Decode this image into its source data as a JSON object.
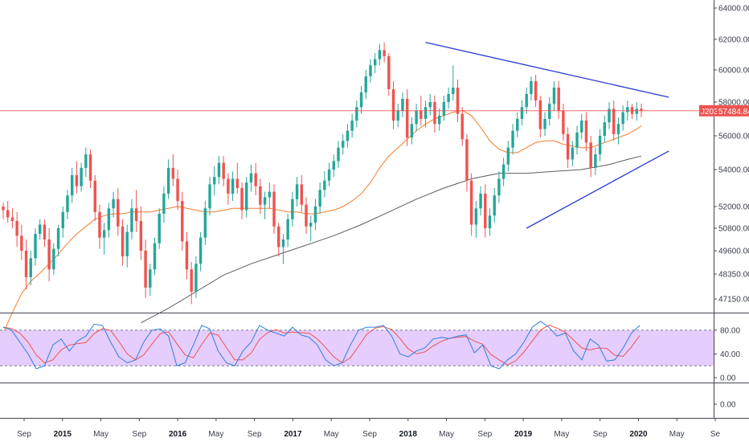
{
  "chart_data": {
    "type": "candlestick",
    "colors": {
      "up": "#26a69a",
      "down": "#ef5350",
      "ma_short": "#f57c2c",
      "ma_long": "#5d5d5d",
      "trendline": "#2a3bd1",
      "price_line": "#ef5350",
      "stoch_band": "#e5cdfd",
      "stoch_k": "#2d7fe0",
      "stoch_d": "#ef5350"
    },
    "y_axis_ticks": [
      "64000.00",
      "62000.00",
      "60000.00",
      "58000.00",
      "56000.00",
      "54000.00",
      "52000.00",
      "50800.00",
      "49600.00",
      "48350.00",
      "47150.00"
    ],
    "y_axis_values": [
      64000,
      62000,
      60000,
      58000,
      56000,
      54000,
      52000,
      50800,
      49600,
      48350,
      47150
    ],
    "x_axis_labels": [
      {
        "label": "Sep",
        "bold": false
      },
      {
        "label": "2015",
        "bold": true
      },
      {
        "label": "May",
        "bold": false
      },
      {
        "label": "Sep",
        "bold": false
      },
      {
        "label": "2016",
        "bold": true
      },
      {
        "label": "May",
        "bold": false
      },
      {
        "label": "Sep",
        "bold": false
      },
      {
        "label": "2017",
        "bold": true
      },
      {
        "label": "May",
        "bold": false
      },
      {
        "label": "Sep",
        "bold": false
      },
      {
        "label": "2018",
        "bold": true
      },
      {
        "label": "May",
        "bold": false
      },
      {
        "label": "Sep",
        "bold": false
      },
      {
        "label": "2019",
        "bold": true
      },
      {
        "label": "May",
        "bold": false
      },
      {
        "label": "Sep",
        "bold": false
      },
      {
        "label": "2020",
        "bold": true
      },
      {
        "label": "May",
        "bold": false
      },
      {
        "label": "Se",
        "bold": false
      }
    ],
    "price_tag": {
      "symbol": "J203",
      "value": "57484.84",
      "price": 57484.84
    },
    "stochastic": {
      "ticks": [
        "80.00",
        "40.00",
        "0.00"
      ],
      "values": [
        80,
        40,
        0
      ],
      "band": [
        80,
        20
      ],
      "k": [
        85,
        80,
        60,
        40,
        15,
        20,
        55,
        65,
        45,
        62,
        70,
        90,
        88,
        60,
        35,
        25,
        30,
        60,
        80,
        82,
        70,
        20,
        25,
        55,
        88,
        82,
        45,
        25,
        20,
        45,
        60,
        88,
        80,
        75,
        70,
        85,
        72,
        68,
        55,
        30,
        20,
        25,
        55,
        80,
        85,
        85,
        88,
        70,
        40,
        35,
        45,
        50,
        65,
        68,
        66,
        70,
        72,
        42,
        55,
        20,
        15,
        30,
        40,
        60,
        85,
        95,
        85,
        70,
        75,
        45,
        30,
        65,
        55,
        28,
        30,
        50,
        75,
        88
      ]
    },
    "candles": [
      [
        52000,
        52200,
        51300,
        51800
      ],
      [
        51800,
        52300,
        51100,
        51400
      ],
      [
        51400,
        51900,
        50800,
        51200
      ],
      [
        51200,
        51700,
        49800,
        50400
      ],
      [
        50400,
        51000,
        49100,
        49600
      ],
      [
        49600,
        50200,
        47600,
        48200
      ],
      [
        48200,
        49600,
        47800,
        49200
      ],
      [
        49200,
        50800,
        48800,
        50500
      ],
      [
        50500,
        51300,
        50200,
        51000
      ],
      [
        51000,
        51300,
        49800,
        50200
      ],
      [
        50200,
        50800,
        48000,
        48600
      ],
      [
        48600,
        50000,
        48300,
        49700
      ],
      [
        49700,
        51000,
        49300,
        50800
      ],
      [
        50800,
        52000,
        50300,
        51700
      ],
      [
        51700,
        52900,
        51300,
        52600
      ],
      [
        52600,
        54100,
        52200,
        53700
      ],
      [
        53700,
        54500,
        52700,
        53100
      ],
      [
        53100,
        54400,
        52800,
        54100
      ],
      [
        54100,
        55300,
        53600,
        54900
      ],
      [
        54900,
        55200,
        53000,
        53400
      ],
      [
        53400,
        53700,
        51200,
        51700
      ],
      [
        51700,
        52100,
        49700,
        50300
      ],
      [
        50300,
        51100,
        49400,
        50700
      ],
      [
        50700,
        52200,
        50300,
        51900
      ],
      [
        51900,
        52800,
        51400,
        52400
      ],
      [
        52400,
        53000,
        50400,
        50900
      ],
      [
        50900,
        51300,
        48800,
        49300
      ],
      [
        49300,
        51000,
        48700,
        50600
      ],
      [
        50600,
        52400,
        50200,
        51900
      ],
      [
        51900,
        52900,
        50600,
        51200
      ],
      [
        51200,
        52000,
        49100,
        49600
      ],
      [
        49600,
        50200,
        47200,
        47700
      ],
      [
        47700,
        48900,
        47300,
        48600
      ],
      [
        48600,
        50300,
        48300,
        50000
      ],
      [
        50000,
        51900,
        49700,
        51600
      ],
      [
        51600,
        53100,
        51100,
        52700
      ],
      [
        52700,
        54600,
        52400,
        54100
      ],
      [
        54100,
        54900,
        53100,
        53500
      ],
      [
        53500,
        54000,
        51800,
        52300
      ],
      [
        52300,
        52800,
        49600,
        50100
      ],
      [
        50100,
        50600,
        48100,
        48600
      ],
      [
        48600,
        49000,
        46900,
        47500
      ],
      [
        47500,
        49300,
        47200,
        48900
      ],
      [
        48900,
        50600,
        48500,
        50300
      ],
      [
        50300,
        52300,
        49900,
        51900
      ],
      [
        51900,
        53600,
        51500,
        53200
      ],
      [
        53200,
        54200,
        52600,
        53600
      ],
      [
        53600,
        54800,
        53200,
        54400
      ],
      [
        54400,
        54800,
        53100,
        53500
      ],
      [
        53500,
        53800,
        52100,
        52700
      ],
      [
        52700,
        53900,
        52300,
        53500
      ],
      [
        53500,
        54400,
        52700,
        53000
      ],
      [
        53000,
        53300,
        51300,
        51800
      ],
      [
        51800,
        53600,
        51400,
        53300
      ],
      [
        53300,
        54300,
        52800,
        53800
      ],
      [
        53800,
        54400,
        52600,
        53100
      ],
      [
        53100,
        53500,
        51600,
        52100
      ],
      [
        52100,
        52800,
        51300,
        52500
      ],
      [
        52500,
        53300,
        51900,
        52800
      ],
      [
        52800,
        53200,
        50500,
        50900
      ],
      [
        50900,
        51100,
        49300,
        49800
      ],
      [
        49800,
        50500,
        48900,
        50200
      ],
      [
        50200,
        51600,
        49800,
        51300
      ],
      [
        51300,
        52800,
        50900,
        52400
      ],
      [
        52400,
        53600,
        52000,
        53200
      ],
      [
        53200,
        53700,
        51700,
        52100
      ],
      [
        52100,
        52500,
        50500,
        50900
      ],
      [
        50900,
        51500,
        50100,
        51100
      ],
      [
        51100,
        52400,
        50700,
        52000
      ],
      [
        52000,
        53300,
        51600,
        52900
      ],
      [
        52900,
        53900,
        52500,
        53400
      ],
      [
        53400,
        54400,
        53100,
        54000
      ],
      [
        54000,
        54900,
        53600,
        54500
      ],
      [
        54500,
        55700,
        54100,
        55300
      ],
      [
        55300,
        56100,
        54900,
        55700
      ],
      [
        55700,
        56700,
        55300,
        56300
      ],
      [
        56300,
        57300,
        55900,
        56900
      ],
      [
        56900,
        58100,
        56500,
        57700
      ],
      [
        57700,
        59000,
        57300,
        58600
      ],
      [
        58600,
        60000,
        58200,
        59600
      ],
      [
        59600,
        60700,
        59200,
        60300
      ],
      [
        60300,
        61100,
        59800,
        60700
      ],
      [
        60700,
        61700,
        60300,
        61300
      ],
      [
        61300,
        61800,
        60500,
        60900
      ],
      [
        60900,
        61100,
        58400,
        58800
      ],
      [
        58800,
        59300,
        56400,
        56900
      ],
      [
        56900,
        57900,
        56500,
        57500
      ],
      [
        57500,
        58600,
        57100,
        58200
      ],
      [
        58200,
        58800,
        55400,
        55900
      ],
      [
        55900,
        57100,
        55500,
        56700
      ],
      [
        56700,
        57900,
        56300,
        57500
      ],
      [
        57500,
        58400,
        56600,
        57000
      ],
      [
        57000,
        58100,
        56500,
        57700
      ],
      [
        57700,
        58500,
        57200,
        58000
      ],
      [
        58000,
        58400,
        56200,
        56700
      ],
      [
        56700,
        57600,
        56300,
        57200
      ],
      [
        57200,
        58400,
        56900,
        58000
      ],
      [
        58000,
        58900,
        57600,
        58500
      ],
      [
        58500,
        60300,
        58100,
        58900
      ],
      [
        58900,
        59400,
        56800,
        57300
      ],
      [
        57300,
        57700,
        55400,
        55800
      ],
      [
        55800,
        56100,
        52800,
        53400
      ],
      [
        53400,
        53800,
        50400,
        51000
      ],
      [
        51000,
        52300,
        50300,
        51900
      ],
      [
        51900,
        53100,
        51500,
        52700
      ],
      [
        52700,
        53200,
        50300,
        50800
      ],
      [
        50800,
        51900,
        50400,
        51500
      ],
      [
        51500,
        53000,
        51100,
        52600
      ],
      [
        52600,
        53900,
        52200,
        53500
      ],
      [
        53500,
        54700,
        53100,
        54300
      ],
      [
        54300,
        55700,
        53900,
        55300
      ],
      [
        55300,
        56700,
        54900,
        56300
      ],
      [
        56300,
        57400,
        55900,
        57000
      ],
      [
        57000,
        58100,
        56600,
        57700
      ],
      [
        57700,
        58900,
        57300,
        58500
      ],
      [
        58500,
        59600,
        58100,
        59300
      ],
      [
        59300,
        59700,
        57700,
        58100
      ],
      [
        58100,
        58400,
        55900,
        56400
      ],
      [
        56400,
        57400,
        56000,
        57000
      ],
      [
        57000,
        58300,
        56600,
        57900
      ],
      [
        57900,
        59300,
        57500,
        58900
      ],
      [
        58900,
        59300,
        57000,
        57500
      ],
      [
        57500,
        57900,
        55700,
        56100
      ],
      [
        56100,
        56500,
        54100,
        54600
      ],
      [
        54600,
        55700,
        54200,
        55300
      ],
      [
        55300,
        56600,
        54900,
        56200
      ],
      [
        56200,
        57300,
        55800,
        56900
      ],
      [
        56900,
        57400,
        55100,
        55600
      ],
      [
        55600,
        56000,
        53600,
        54100
      ],
      [
        54100,
        55300,
        53700,
        54900
      ],
      [
        54900,
        56400,
        54500,
        56000
      ],
      [
        56000,
        57200,
        55600,
        56800
      ],
      [
        56800,
        58000,
        56400,
        57600
      ],
      [
        57600,
        58100,
        55700,
        56100
      ],
      [
        56100,
        57100,
        55500,
        56700
      ],
      [
        56700,
        57800,
        56300,
        57400
      ],
      [
        57400,
        58100,
        56900,
        57700
      ],
      [
        57700,
        57900,
        57000,
        57300
      ],
      [
        57300,
        58000,
        56900,
        57600
      ],
      [
        57600,
        57900,
        57100,
        57484
      ]
    ],
    "ma_short": [
      [
        0,
        45500
      ],
      [
        2,
        46500
      ],
      [
        4,
        47400
      ],
      [
        6,
        48000
      ],
      [
        8,
        48400
      ],
      [
        10,
        48900
      ],
      [
        12,
        49400
      ],
      [
        14,
        50000
      ],
      [
        16,
        50500
      ],
      [
        18,
        50900
      ],
      [
        20,
        51300
      ],
      [
        22,
        51500
      ],
      [
        24,
        51600
      ],
      [
        26,
        51600
      ],
      [
        28,
        51700
      ],
      [
        30,
        51700
      ],
      [
        32,
        51700
      ],
      [
        34,
        51800
      ],
      [
        36,
        51900
      ],
      [
        38,
        52000
      ],
      [
        40,
        51900
      ],
      [
        42,
        51800
      ],
      [
        44,
        51700
      ],
      [
        46,
        51700
      ],
      [
        48,
        51800
      ],
      [
        50,
        51900
      ],
      [
        52,
        51900
      ],
      [
        54,
        51900
      ],
      [
        56,
        51900
      ],
      [
        58,
        51900
      ],
      [
        60,
        51800
      ],
      [
        62,
        51700
      ],
      [
        64,
        51700
      ],
      [
        66,
        51600
      ],
      [
        68,
        51600
      ],
      [
        70,
        51700
      ],
      [
        72,
        51800
      ],
      [
        74,
        52000
      ],
      [
        76,
        52300
      ],
      [
        78,
        52700
      ],
      [
        80,
        53300
      ],
      [
        82,
        54100
      ],
      [
        84,
        54800
      ],
      [
        86,
        55300
      ],
      [
        88,
        55800
      ],
      [
        90,
        56300
      ],
      [
        92,
        56700
      ],
      [
        94,
        57000
      ],
      [
        96,
        57200
      ],
      [
        98,
        57400
      ],
      [
        100,
        57500
      ],
      [
        102,
        57200
      ],
      [
        104,
        56500
      ],
      [
        106,
        55700
      ],
      [
        108,
        55200
      ],
      [
        110,
        55000
      ],
      [
        112,
        55000
      ],
      [
        114,
        55300
      ],
      [
        116,
        55600
      ],
      [
        118,
        55700
      ],
      [
        120,
        55700
      ],
      [
        122,
        55500
      ],
      [
        124,
        55400
      ],
      [
        126,
        55300
      ],
      [
        128,
        55300
      ],
      [
        130,
        55500
      ],
      [
        132,
        55700
      ],
      [
        134,
        55900
      ],
      [
        136,
        56100
      ],
      [
        138,
        56400
      ],
      [
        139,
        56600
      ]
    ],
    "ma_long": [
      [
        30,
        46000
      ],
      [
        36,
        46700
      ],
      [
        42,
        47500
      ],
      [
        48,
        48300
      ],
      [
        54,
        48900
      ],
      [
        60,
        49400
      ],
      [
        66,
        49900
      ],
      [
        72,
        50400
      ],
      [
        78,
        51000
      ],
      [
        84,
        51700
      ],
      [
        90,
        52400
      ],
      [
        96,
        53000
      ],
      [
        102,
        53500
      ],
      [
        108,
        53800
      ],
      [
        114,
        53800
      ],
      [
        120,
        53900
      ],
      [
        126,
        54000
      ],
      [
        132,
        54300
      ],
      [
        136,
        54600
      ],
      [
        139,
        54800
      ]
    ],
    "trendlines": [
      {
        "start": [
          92,
          61800
        ],
        "end": [
          145,
          58300
        ]
      },
      {
        "start": [
          114,
          50800
        ],
        "end": [
          145,
          55100
        ]
      }
    ]
  }
}
